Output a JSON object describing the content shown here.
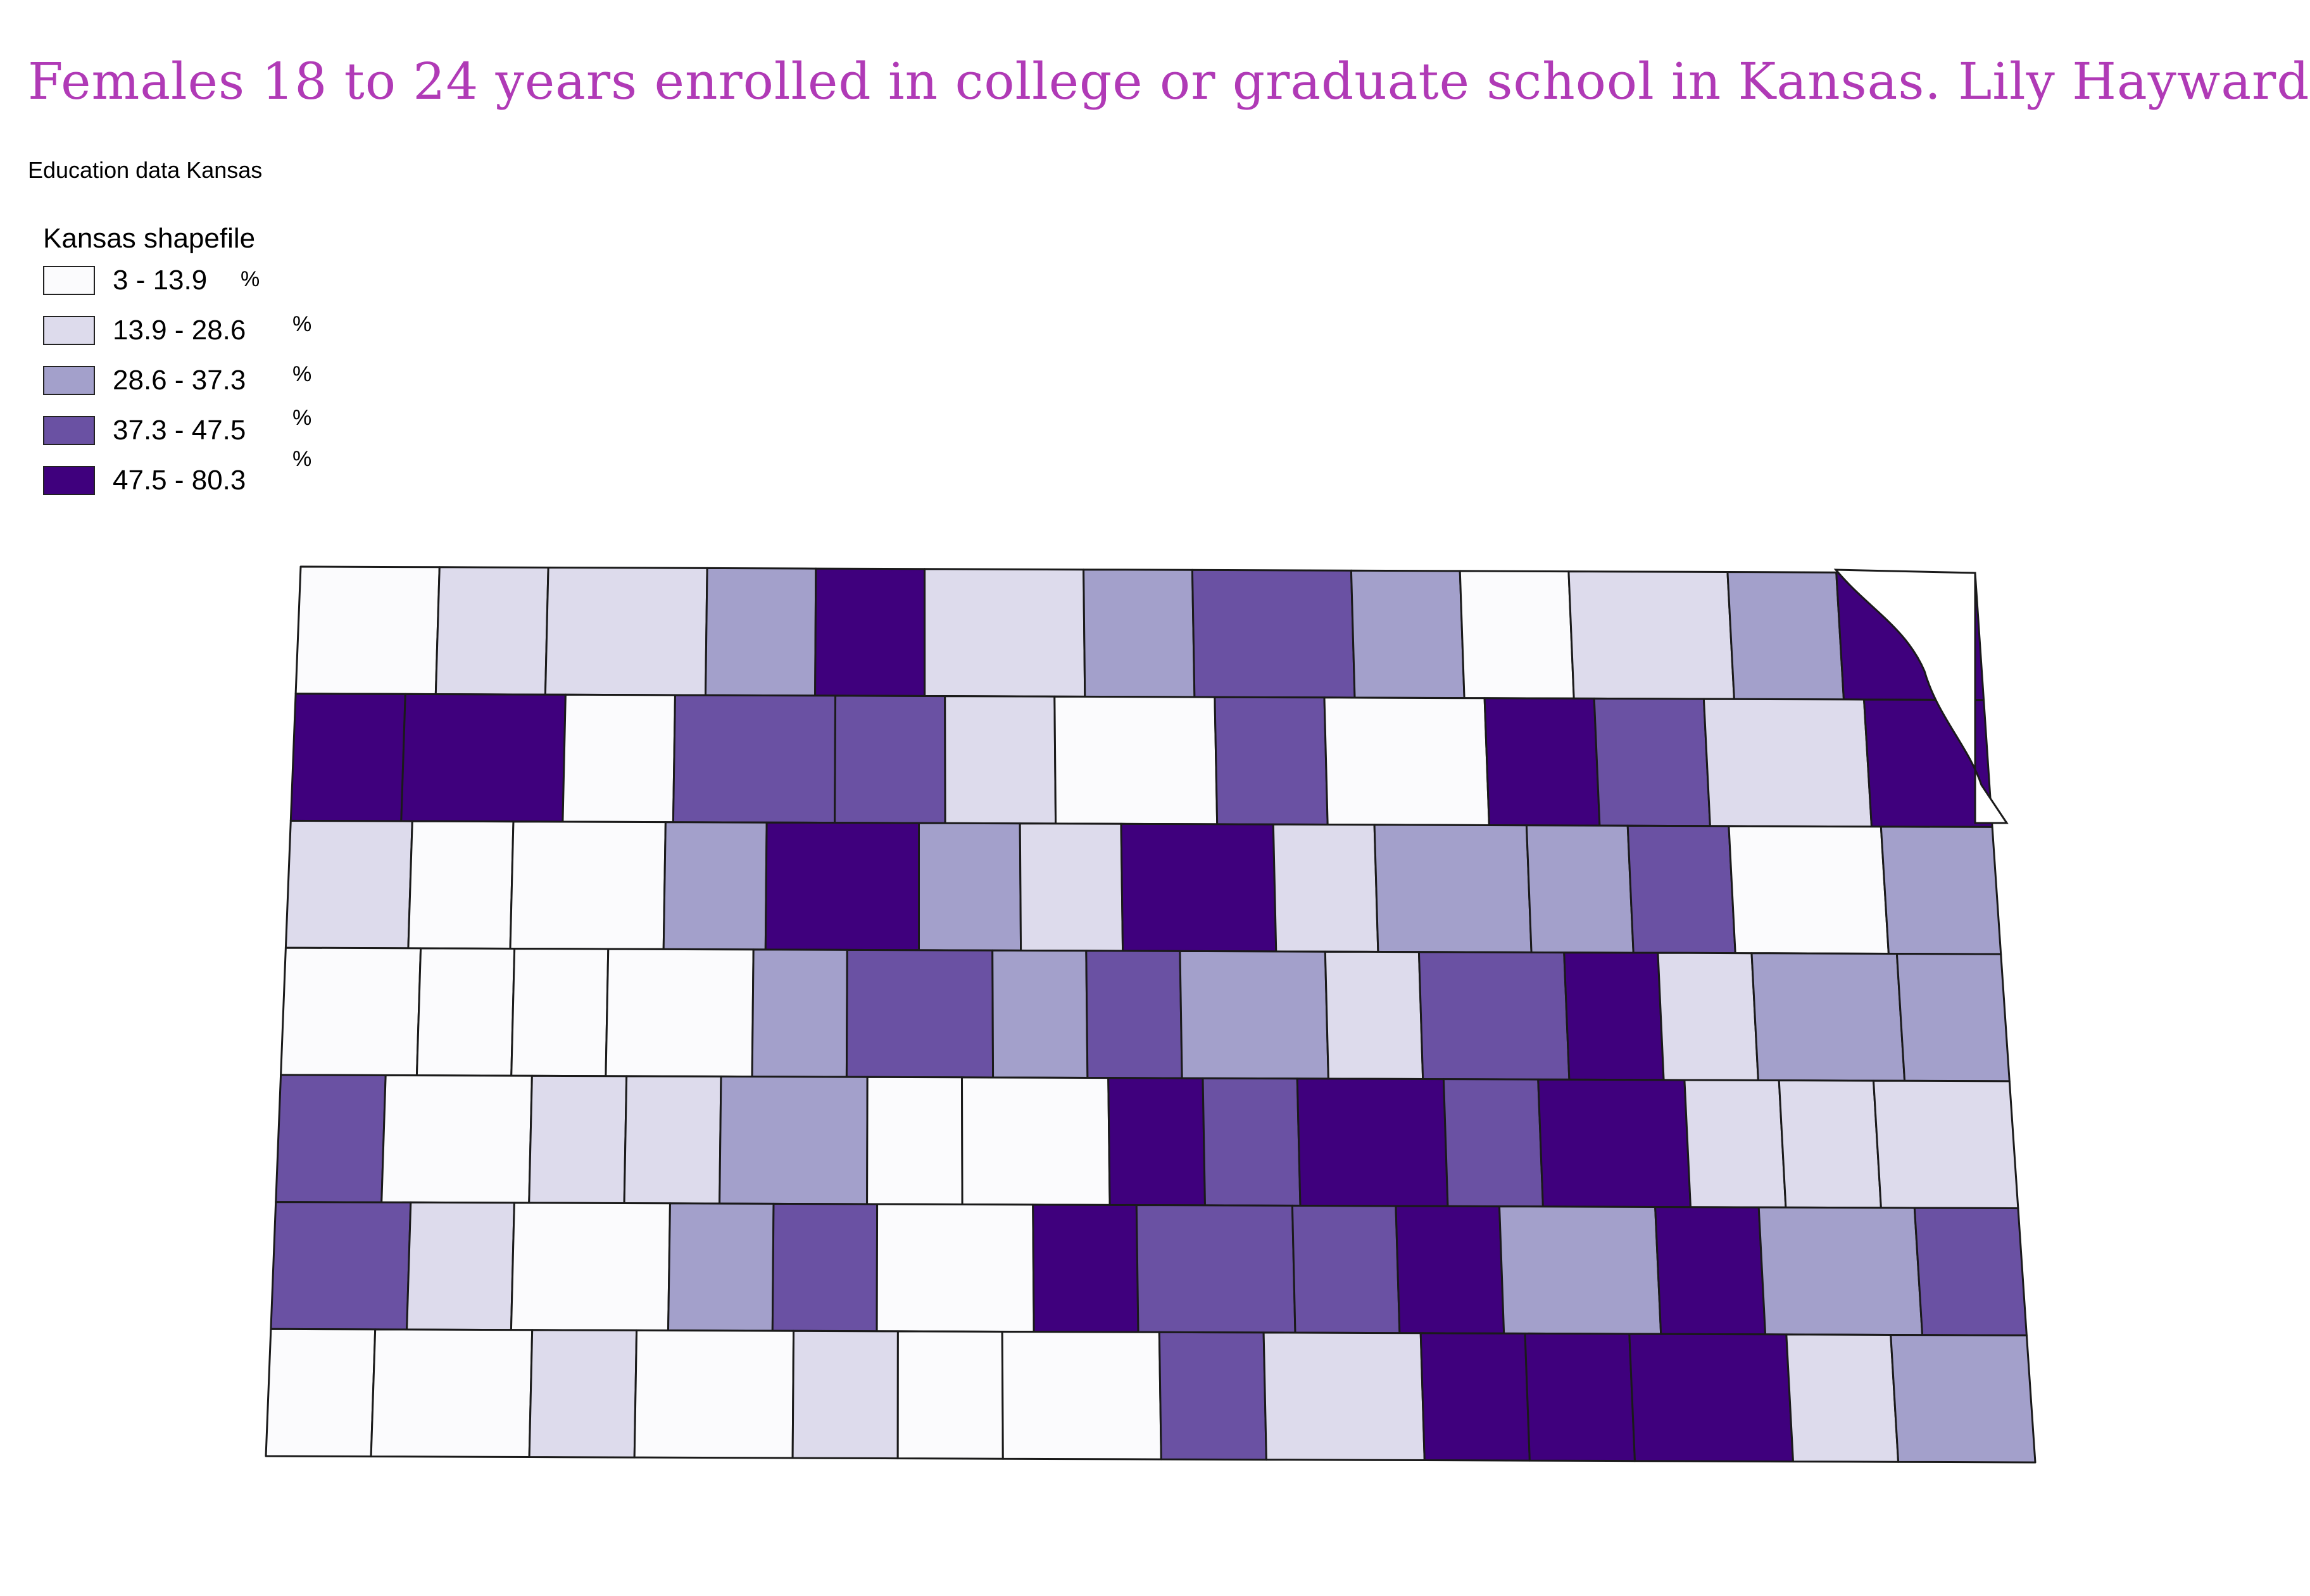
{
  "map": {
    "title": "Females 18 to 24 years enrolled in college or graduate school in Kansas.  Lily Hayward",
    "subtitle": "Education data Kansas",
    "legend": {
      "title": "Kansas shapefile",
      "classes": [
        {
          "label": "3 - 13.9",
          "unit": "%",
          "color": "#fbfbfd"
        },
        {
          "label": "13.9 - 28.6",
          "unit": "%",
          "color": "#dddbec"
        },
        {
          "label": "28.6 - 37.3",
          "unit": "%",
          "color": "#a3a0cb"
        },
        {
          "label": "37.3 - 47.5",
          "unit": "%",
          "color": "#6a51a3"
        },
        {
          "label": "47.5 - 80.3",
          "unit": "%",
          "color": "#3f007d"
        }
      ]
    },
    "region": "Kansas counties",
    "stroke_color": "#1a1a1a"
  },
  "chart_data": {
    "type": "choropleth",
    "title": "Females 18 to 24 years enrolled in college or graduate school in Kansas.  Lily Hayward",
    "subtitle": "Education data Kansas",
    "legend_title": "Kansas shapefile",
    "classes": [
      "3 - 13.9",
      "13.9 - 28.6",
      "28.6 - 37.3",
      "37.3 - 47.5",
      "47.5 - 80.3"
    ],
    "unit": "%",
    "legend_position": "top-left",
    "county_class_grid_rows_north_to_south": [
      [
        0,
        1,
        1,
        2,
        4,
        1,
        2,
        3,
        2,
        0,
        1,
        2,
        4
      ],
      [
        4,
        4,
        0,
        3,
        3,
        1,
        0,
        3,
        0,
        4,
        3,
        1,
        4
      ],
      [
        1,
        0,
        0,
        2,
        4,
        2,
        1,
        4,
        1,
        2,
        2,
        3,
        0,
        2
      ],
      [
        0,
        0,
        0,
        0,
        2,
        3,
        2,
        3,
        2,
        1,
        3,
        4,
        1,
        2,
        2
      ],
      [
        3,
        0,
        1,
        1,
        2,
        0,
        0,
        4,
        3,
        4,
        3,
        4,
        1,
        1,
        1
      ],
      [
        3,
        1,
        0,
        2,
        3,
        0,
        4,
        3,
        3,
        4,
        2,
        4,
        2,
        3
      ],
      [
        0,
        0,
        1,
        0,
        1,
        0,
        0,
        3,
        1,
        4,
        4,
        4,
        1,
        2
      ]
    ]
  }
}
